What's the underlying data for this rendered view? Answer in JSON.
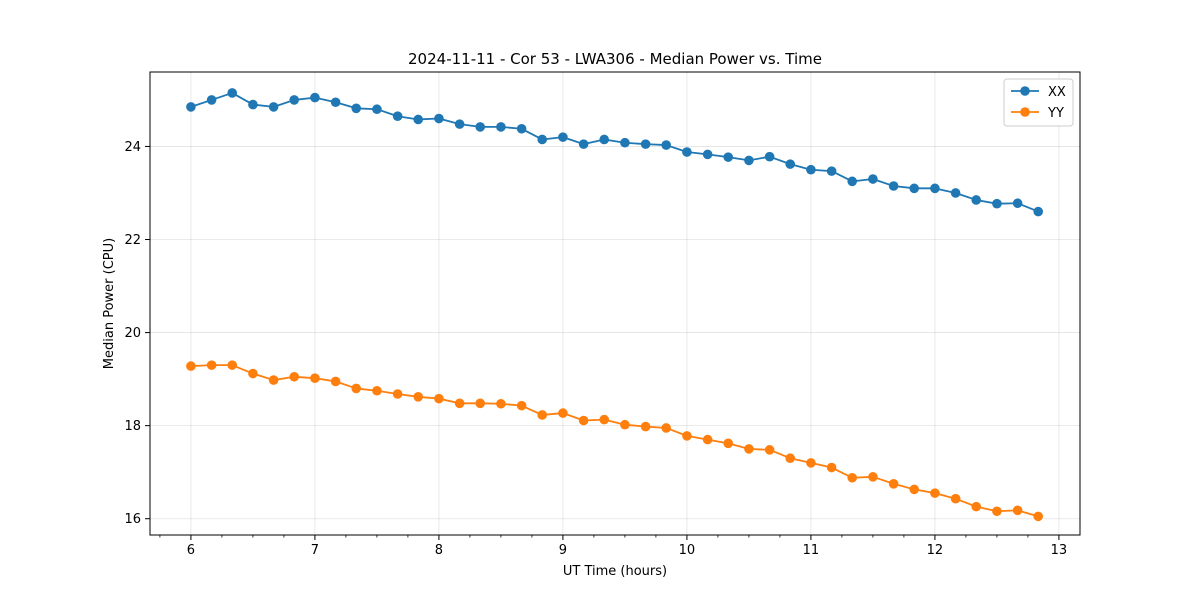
{
  "chart_data": {
    "type": "line",
    "title": "2024-11-11 - Cor 53 - LWA306 - Median Power vs. Time",
    "xlabel": "UT Time (hours)",
    "ylabel": "Median Power (CPU)",
    "xlim": [
      5.67,
      13.17
    ],
    "ylim": [
      15.65,
      25.6
    ],
    "xticks": [
      6,
      7,
      8,
      9,
      10,
      11,
      12,
      13
    ],
    "yticks": [
      16,
      18,
      20,
      22,
      24
    ],
    "grid": true,
    "legend_position": "top-right",
    "x": [
      6.0,
      6.167,
      6.333,
      6.5,
      6.667,
      6.833,
      7.0,
      7.167,
      7.333,
      7.5,
      7.667,
      7.833,
      8.0,
      8.167,
      8.333,
      8.5,
      8.667,
      8.833,
      9.0,
      9.167,
      9.333,
      9.5,
      9.667,
      9.833,
      10.0,
      10.167,
      10.333,
      10.5,
      10.667,
      10.833,
      11.0,
      11.167,
      11.333,
      11.5,
      11.667,
      11.833,
      12.0,
      12.167,
      12.333,
      12.5,
      12.667,
      12.833
    ],
    "series": [
      {
        "name": "XX",
        "color": "#1f77b4",
        "values": [
          24.85,
          25.0,
          25.15,
          24.9,
          24.85,
          25.0,
          25.05,
          24.95,
          24.82,
          24.8,
          24.65,
          24.58,
          24.6,
          24.48,
          24.42,
          24.42,
          24.38,
          24.15,
          24.2,
          24.05,
          24.15,
          24.08,
          24.05,
          24.03,
          23.88,
          23.83,
          23.77,
          23.7,
          23.78,
          23.62,
          23.5,
          23.47,
          23.25,
          23.3,
          23.15,
          23.1,
          23.1,
          23.0,
          22.85,
          22.77,
          22.78,
          22.6
        ]
      },
      {
        "name": "YY",
        "color": "#ff7f0e",
        "values": [
          19.28,
          19.3,
          19.3,
          19.12,
          18.98,
          19.05,
          19.02,
          18.95,
          18.8,
          18.75,
          18.68,
          18.62,
          18.58,
          18.48,
          18.48,
          18.47,
          18.43,
          18.23,
          18.27,
          18.11,
          18.13,
          18.02,
          17.98,
          17.95,
          17.78,
          17.7,
          17.62,
          17.5,
          17.48,
          17.3,
          17.2,
          17.1,
          16.88,
          16.9,
          16.75,
          16.63,
          16.55,
          16.43,
          16.26,
          16.16,
          16.18,
          16.05
        ]
      }
    ]
  }
}
